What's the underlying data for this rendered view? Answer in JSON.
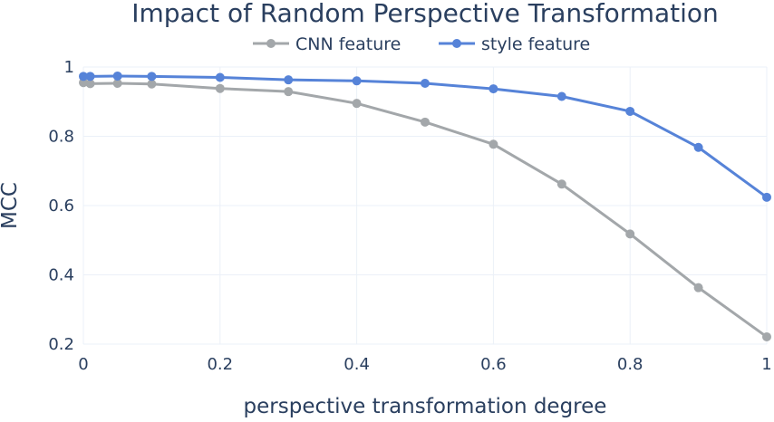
{
  "chart_data": {
    "type": "line",
    "title": "Impact of Random Perspective Transformation",
    "xlabel": "perspective transformation degree",
    "ylabel": "MCC",
    "xlim": [
      0,
      1
    ],
    "ylim": [
      0.2,
      1
    ],
    "x_ticks": [
      0,
      0.2,
      0.4,
      0.6,
      0.8,
      1
    ],
    "x_tick_labels": [
      "0",
      "0.2",
      "0.4",
      "0.6",
      "0.8",
      "1"
    ],
    "y_ticks": [
      0.2,
      0.4,
      0.6,
      0.8,
      1
    ],
    "y_tick_labels": [
      "0.2",
      "0.4",
      "0.6",
      "0.8",
      "1"
    ],
    "grid": true,
    "legend_position": "top-center",
    "x": [
      0,
      0.01,
      0.05,
      0.1,
      0.2,
      0.3,
      0.4,
      0.5,
      0.6,
      0.7,
      0.8,
      0.9,
      1
    ],
    "series": [
      {
        "name": "CNN feature",
        "color": "#a3a7aa",
        "values": [
          0.955,
          0.952,
          0.953,
          0.951,
          0.938,
          0.929,
          0.895,
          0.841,
          0.777,
          0.662,
          0.518,
          0.363,
          0.221
        ]
      },
      {
        "name": "style feature",
        "color": "#5683d8",
        "values": [
          0.973,
          0.973,
          0.974,
          0.973,
          0.97,
          0.963,
          0.96,
          0.953,
          0.937,
          0.915,
          0.872,
          0.768,
          0.624
        ]
      }
    ]
  }
}
